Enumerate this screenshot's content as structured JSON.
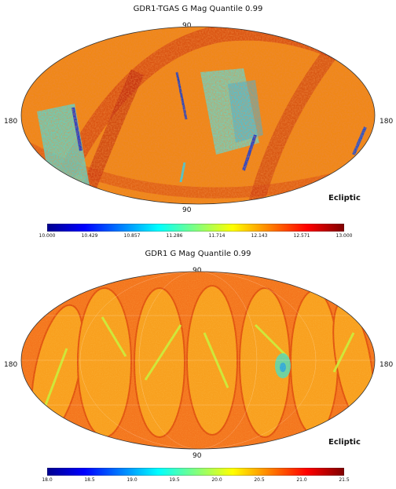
{
  "chart_data": [
    {
      "type": "heatmap",
      "projection": "Mollweide",
      "title": "GDR1-TGAS G Mag Quantile 0.99",
      "frame": "Ecliptic",
      "axis_labels": {
        "top": "90",
        "bottom": "90",
        "left": "180",
        "right": "180"
      },
      "colorbar": {
        "colormap": "jet",
        "range": [
          10.0,
          13.0
        ],
        "ticks": [
          "10.000",
          "10.429",
          "10.857",
          "11.286",
          "11.714",
          "12.143",
          "12.571",
          "13.000"
        ]
      },
      "dominant_value": "12.5 - 13.0 (orange/red)",
      "low_value_regions": "cyan/blue patches ~11.0 - 11.3"
    },
    {
      "type": "heatmap",
      "projection": "Mollweide",
      "title": "GDR1 G Mag Quantile 0.99",
      "frame": "Ecliptic",
      "axis_labels": {
        "top": "90",
        "bottom": "90",
        "left": "180",
        "right": "180"
      },
      "colorbar": {
        "colormap": "jet",
        "range": [
          18.0,
          21.5
        ],
        "ticks": [
          "18.0",
          "18.5",
          "19.0",
          "19.5",
          "20.0",
          "20.5",
          "21.0",
          "21.5"
        ]
      },
      "dominant_value": "~20.7 - 21.0 (orange)",
      "low_value_regions": "yellow/green scan stripes ~20.0 - 20.5"
    }
  ]
}
